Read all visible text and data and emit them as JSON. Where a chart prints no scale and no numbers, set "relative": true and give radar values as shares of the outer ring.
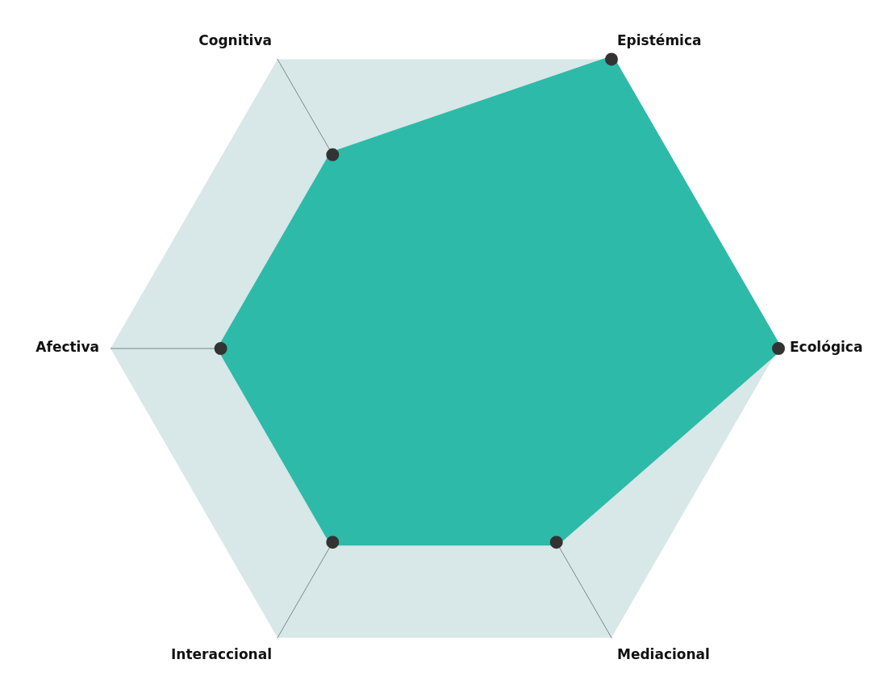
{
  "chart_data": {
    "type": "radar",
    "categories": [
      "Epistémica",
      "Ecológica",
      "Mediacional",
      "Interaccional",
      "Afectiva",
      "Cognitiva"
    ],
    "relative": true,
    "series": [
      {
        "color": "#2ebaa8",
        "values": [
          1,
          1,
          0.67,
          0.67,
          0.67,
          0.67
        ]
      }
    ],
    "marker": "circle"
  }
}
